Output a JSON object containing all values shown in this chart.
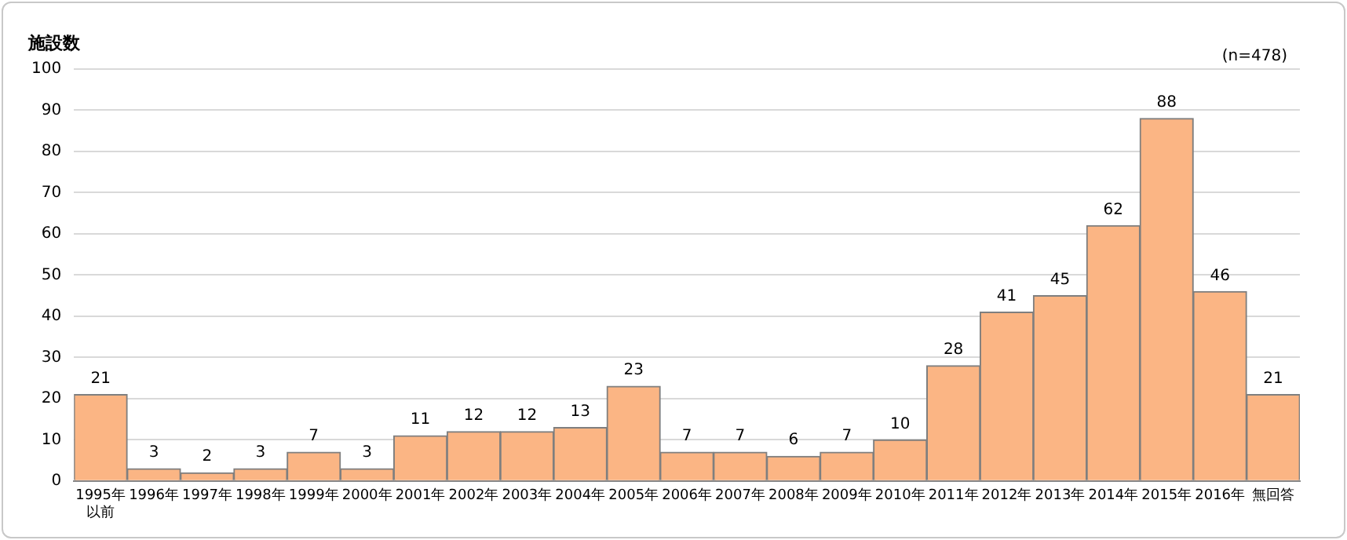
{
  "chart_data": {
    "type": "bar",
    "ylabel": "施設数",
    "annotations": [
      "(n=478)"
    ],
    "categories": [
      "1995年以前",
      "1996年",
      "1997年",
      "1998年",
      "1999年",
      "2000年",
      "2001年",
      "2002年",
      "2003年",
      "2004年",
      "2005年",
      "2006年",
      "2007年",
      "2008年",
      "2009年",
      "2010年",
      "2011年",
      "2012年",
      "2013年",
      "2014年",
      "2015年",
      "2016年",
      "無回答"
    ],
    "values": [
      21,
      3,
      2,
      3,
      7,
      3,
      11,
      12,
      12,
      13,
      23,
      7,
      7,
      6,
      7,
      10,
      28,
      41,
      45,
      62,
      88,
      46,
      21
    ],
    "color": "#fbb584",
    "ylim": [
      0,
      100
    ],
    "yticks": [
      0,
      10,
      20,
      30,
      40,
      50,
      60,
      70,
      80,
      90,
      100
    ],
    "grid": "y",
    "data_labels": true
  }
}
